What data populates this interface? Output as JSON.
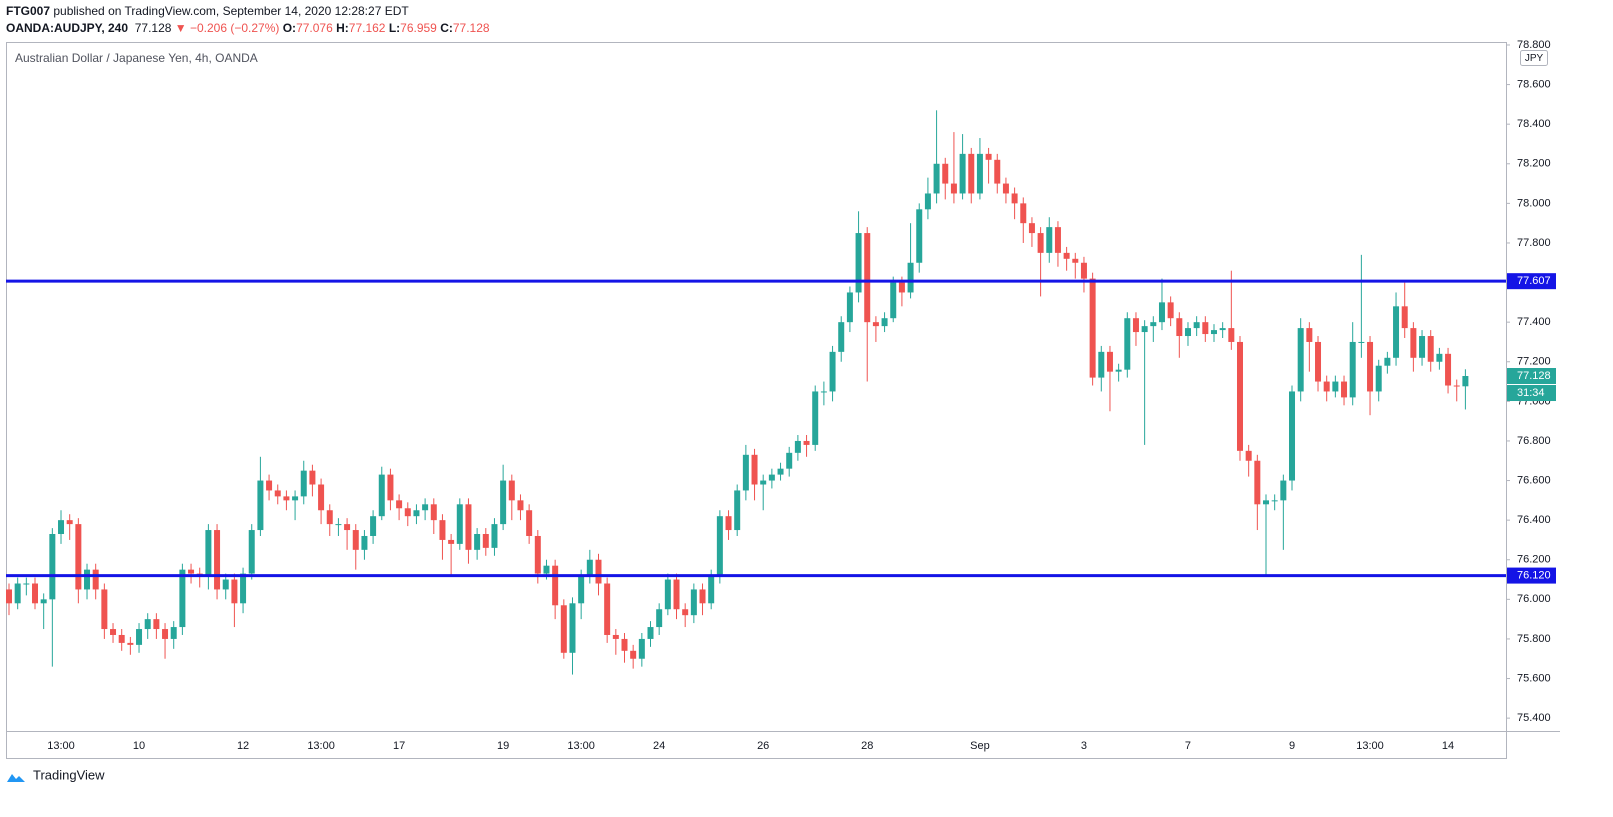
{
  "header": {
    "author": "FTG007",
    "published": "published on TradingView.com, September 14, 2020 12:28:27 EDT",
    "symbol": "OANDA:AUDJPY, 240",
    "change": "▼ −0.206 (−0.27%)",
    "o_label": "O:",
    "h_label": "H:",
    "l_label": "L:",
    "c_label": "C:"
  },
  "footer": {
    "logo": "TradingView"
  },
  "chart_data": {
    "type": "candlestick",
    "title": "Australian Dollar / Japanese Yen, 4h, OANDA",
    "currency": "JPY",
    "countdown": "31:34",
    "up_color": "#26a69a",
    "down_color": "#ef5350",
    "categories": [
      null,
      null,
      null,
      null,
      null,
      null,
      "13:00",
      null,
      null,
      null,
      null,
      null,
      null,
      null,
      null,
      "10",
      null,
      null,
      null,
      null,
      null,
      null,
      null,
      null,
      null,
      null,
      null,
      "12",
      null,
      null,
      null,
      null,
      null,
      null,
      null,
      null,
      "13:00",
      null,
      null,
      null,
      null,
      null,
      null,
      null,
      null,
      "17",
      null,
      null,
      null,
      null,
      null,
      null,
      null,
      null,
      null,
      null,
      null,
      "19",
      null,
      null,
      null,
      null,
      null,
      null,
      null,
      null,
      "13:00",
      null,
      null,
      null,
      null,
      null,
      null,
      null,
      null,
      "24",
      null,
      null,
      null,
      null,
      null,
      null,
      null,
      null,
      null,
      null,
      null,
      "26",
      null,
      null,
      null,
      null,
      null,
      null,
      null,
      null,
      null,
      null,
      null,
      "28",
      null,
      null,
      null,
      null,
      null,
      null,
      null,
      null,
      null,
      null,
      null,
      null,
      "Sep",
      null,
      null,
      null,
      null,
      null,
      null,
      null,
      null,
      null,
      null,
      null,
      "3",
      null,
      null,
      null,
      null,
      null,
      null,
      null,
      null,
      null,
      null,
      null,
      "7",
      null,
      null,
      null,
      null,
      null,
      null,
      null,
      null,
      null,
      null,
      null,
      "9",
      null,
      null,
      null,
      null,
      null,
      null,
      null,
      null,
      "13:00",
      null,
      null,
      null,
      null,
      null,
      null,
      null,
      null,
      "14",
      null,
      null
    ],
    "open": [
      76.05,
      75.98,
      76.08,
      76.08,
      75.98,
      76.0,
      76.33,
      76.4,
      76.38,
      76.05,
      76.15,
      76.05,
      75.85,
      75.82,
      75.78,
      75.77,
      75.85,
      75.9,
      75.85,
      75.8,
      75.86,
      76.15,
      76.13,
      76.12,
      76.35,
      76.05,
      76.1,
      75.98,
      76.13,
      76.35,
      76.6,
      76.55,
      76.52,
      76.5,
      76.52,
      76.65,
      76.58,
      76.45,
      76.38,
      76.38,
      76.35,
      76.25,
      76.32,
      76.42,
      76.63,
      76.5,
      76.46,
      76.42,
      76.45,
      76.48,
      76.4,
      76.3,
      76.28,
      76.48,
      76.25,
      76.33,
      76.26,
      76.38,
      76.6,
      76.5,
      76.45,
      76.32,
      76.13,
      76.17,
      75.97,
      75.73,
      75.98,
      76.12,
      76.2,
      76.08,
      75.82,
      75.8,
      75.74,
      75.7,
      75.8,
      75.86,
      75.95,
      76.1,
      75.95,
      75.92,
      76.05,
      75.98,
      76.12,
      76.42,
      76.35,
      76.55,
      76.73,
      76.58,
      76.6,
      76.63,
      76.66,
      76.74,
      76.8,
      76.78,
      77.05,
      77.05,
      77.25,
      77.4,
      77.55,
      77.85,
      77.4,
      77.38,
      77.42,
      77.6,
      77.55,
      77.7,
      77.97,
      78.05,
      78.2,
      78.1,
      78.05,
      78.25,
      78.05,
      78.25,
      78.22,
      78.1,
      78.05,
      78.0,
      77.9,
      77.85,
      77.75,
      77.88,
      77.75,
      77.72,
      77.7,
      77.62,
      77.12,
      77.25,
      77.15,
      77.16,
      77.42,
      77.35,
      77.38,
      77.4,
      77.5,
      77.42,
      77.33,
      77.37,
      77.4,
      77.34,
      77.36,
      77.37,
      77.3,
      76.75,
      76.7,
      76.48,
      76.5,
      76.5,
      76.6,
      77.05,
      77.37,
      77.3,
      77.1,
      77.05,
      77.1,
      77.02,
      77.3,
      77.3,
      77.05,
      77.18,
      77.22,
      77.48,
      77.37,
      77.22,
      77.33,
      77.2,
      77.24,
      77.08,
      77.076
    ],
    "high": [
      76.08,
      76.11,
      76.11,
      76.11,
      76.03,
      76.36,
      76.45,
      76.43,
      76.41,
      76.18,
      76.18,
      76.08,
      75.88,
      75.85,
      75.81,
      75.88,
      75.93,
      75.93,
      75.88,
      75.89,
      76.18,
      76.18,
      76.16,
      76.38,
      76.38,
      76.13,
      76.13,
      76.16,
      76.38,
      76.72,
      76.63,
      76.58,
      76.55,
      76.55,
      76.7,
      76.68,
      76.61,
      76.48,
      76.41,
      76.41,
      76.38,
      76.35,
      76.45,
      76.67,
      76.66,
      76.53,
      76.49,
      76.48,
      76.51,
      76.51,
      76.43,
      76.33,
      76.51,
      76.51,
      76.36,
      76.36,
      76.41,
      76.68,
      76.63,
      76.53,
      76.48,
      76.35,
      76.2,
      76.2,
      76.0,
      76.01,
      76.15,
      76.25,
      76.23,
      76.11,
      75.85,
      75.83,
      75.77,
      75.83,
      75.89,
      75.98,
      76.13,
      76.13,
      75.98,
      76.08,
      76.08,
      76.15,
      76.45,
      76.45,
      76.58,
      76.78,
      76.76,
      76.63,
      76.66,
      76.69,
      76.77,
      76.83,
      76.83,
      77.08,
      77.1,
      77.28,
      77.43,
      77.58,
      77.96,
      77.88,
      77.43,
      77.45,
      77.63,
      77.63,
      77.9,
      78.0,
      78.13,
      78.47,
      78.23,
      78.36,
      78.35,
      78.28,
      78.33,
      78.28,
      78.25,
      78.13,
      78.08,
      78.03,
      77.93,
      77.88,
      77.93,
      77.91,
      77.78,
      77.75,
      77.73,
      77.65,
      77.28,
      77.28,
      77.19,
      77.45,
      77.45,
      77.41,
      77.43,
      77.62,
      77.53,
      77.45,
      77.4,
      77.43,
      77.43,
      77.39,
      77.4,
      77.66,
      77.33,
      76.78,
      76.73,
      76.53,
      76.53,
      76.63,
      77.08,
      77.42,
      77.4,
      77.33,
      77.13,
      77.13,
      77.13,
      77.4,
      77.74,
      77.33,
      77.21,
      77.25,
      77.55,
      77.6,
      77.4,
      77.36,
      77.36,
      77.27,
      77.27,
      77.11,
      77.162
    ],
    "low": [
      75.92,
      75.95,
      76.02,
      75.95,
      75.85,
      75.66,
      76.28,
      76.3,
      75.98,
      76.0,
      76.0,
      75.8,
      75.78,
      75.74,
      75.72,
      75.73,
      75.8,
      75.8,
      75.7,
      75.75,
      75.82,
      76.08,
      76.06,
      76.05,
      76.0,
      76.0,
      75.86,
      75.93,
      76.1,
      76.32,
      76.5,
      76.48,
      76.45,
      76.4,
      76.48,
      76.52,
      76.38,
      76.32,
      76.32,
      76.25,
      76.15,
      76.2,
      76.28,
      76.4,
      76.45,
      76.4,
      76.37,
      76.38,
      76.4,
      76.33,
      76.2,
      76.12,
      76.25,
      76.18,
      76.2,
      76.22,
      76.22,
      76.35,
      76.4,
      76.4,
      76.28,
      76.08,
      76.1,
      75.9,
      75.7,
      75.62,
      75.9,
      76.08,
      76.02,
      75.78,
      75.72,
      75.68,
      75.65,
      75.66,
      75.76,
      75.82,
      75.92,
      75.9,
      75.86,
      75.88,
      75.92,
      75.95,
      76.08,
      76.3,
      76.32,
      76.5,
      76.5,
      76.45,
      76.56,
      76.6,
      76.62,
      76.7,
      76.72,
      76.75,
      76.98,
      77.0,
      77.2,
      77.35,
      77.5,
      77.1,
      77.3,
      77.35,
      77.4,
      77.48,
      77.52,
      77.65,
      77.92,
      78.0,
      78.02,
      78.0,
      78.02,
      78.0,
      78.02,
      78.1,
      78.05,
      78.0,
      77.92,
      77.8,
      77.78,
      77.53,
      77.7,
      77.68,
      77.66,
      77.62,
      77.55,
      77.08,
      77.05,
      76.95,
      77.1,
      77.12,
      77.28,
      76.78,
      77.3,
      77.36,
      77.38,
      77.22,
      77.28,
      77.33,
      77.3,
      77.3,
      77.32,
      77.26,
      76.7,
      76.62,
      76.35,
      76.12,
      76.45,
      76.25,
      76.55,
      77.0,
      77.15,
      77.05,
      77.0,
      77.02,
      76.98,
      76.98,
      77.22,
      76.93,
      77.0,
      77.14,
      77.18,
      77.32,
      77.15,
      77.18,
      77.15,
      77.16,
      77.04,
      77.0,
      76.959
    ],
    "close": [
      75.98,
      76.08,
      76.08,
      75.98,
      76.0,
      76.33,
      76.4,
      76.38,
      76.05,
      76.15,
      76.05,
      75.85,
      75.82,
      75.78,
      75.77,
      75.85,
      75.9,
      75.85,
      75.8,
      75.86,
      76.15,
      76.13,
      76.12,
      76.35,
      76.05,
      76.1,
      75.98,
      76.13,
      76.35,
      76.6,
      76.55,
      76.52,
      76.5,
      76.52,
      76.65,
      76.58,
      76.45,
      76.38,
      76.38,
      76.35,
      76.25,
      76.32,
      76.42,
      76.63,
      76.5,
      76.46,
      76.42,
      76.45,
      76.48,
      76.4,
      76.3,
      76.28,
      76.48,
      76.25,
      76.33,
      76.26,
      76.38,
      76.6,
      76.5,
      76.45,
      76.32,
      76.13,
      76.17,
      75.97,
      75.73,
      75.98,
      76.12,
      76.2,
      76.08,
      75.82,
      75.8,
      75.74,
      75.7,
      75.8,
      75.86,
      75.95,
      76.1,
      75.95,
      75.92,
      76.05,
      75.98,
      76.12,
      76.42,
      76.35,
      76.55,
      76.73,
      76.58,
      76.6,
      76.63,
      76.66,
      76.74,
      76.8,
      76.78,
      77.05,
      77.05,
      77.25,
      77.4,
      77.55,
      77.85,
      77.4,
      77.38,
      77.42,
      77.6,
      77.55,
      77.7,
      77.97,
      78.05,
      78.2,
      78.1,
      78.05,
      78.25,
      78.05,
      78.25,
      78.22,
      78.1,
      78.05,
      78.0,
      77.9,
      77.85,
      77.75,
      77.88,
      77.75,
      77.72,
      77.7,
      77.62,
      77.12,
      77.25,
      77.15,
      77.16,
      77.42,
      77.35,
      77.38,
      77.4,
      77.5,
      77.42,
      77.33,
      77.37,
      77.4,
      77.34,
      77.36,
      77.37,
      77.3,
      76.75,
      76.7,
      76.48,
      76.5,
      76.5,
      76.6,
      77.05,
      77.37,
      77.3,
      77.1,
      77.05,
      77.1,
      77.02,
      77.3,
      77.3,
      77.05,
      77.18,
      77.22,
      77.48,
      77.37,
      77.22,
      77.33,
      77.2,
      77.24,
      77.08,
      77.076,
      77.128
    ],
    "levels": [
      {
        "value": 77.607,
        "color": "#1414e6"
      },
      {
        "value": 76.12,
        "label": "76.120",
        "color": "#1414e6"
      }
    ],
    "ylim": [
      75.335,
      78.81
    ],
    "yticks": [
      {
        "value": 75.4,
        "label": "75.400"
      },
      {
        "value": 75.6,
        "label": "75.600"
      },
      {
        "value": 75.8,
        "label": "75.800"
      },
      {
        "value": 76,
        "label": "76.000"
      },
      {
        "value": 76.2,
        "label": "76.200"
      },
      {
        "value": 76.4,
        "label": "76.400"
      },
      {
        "value": 76.6,
        "label": "76.600"
      },
      {
        "value": 76.8,
        "label": "76.800"
      },
      {
        "value": 77,
        "label": "77.000"
      },
      {
        "value": 77.2,
        "label": "77.200"
      },
      {
        "value": 77.4,
        "label": "77.400"
      },
      {
        "value": 77.6,
        "label": "77.600"
      },
      {
        "value": 77.8,
        "label": "77.800"
      },
      {
        "value": 78,
        "label": "78.000"
      },
      {
        "value": 78.2,
        "label": "78.200"
      },
      {
        "value": 78.4,
        "label": "78.400"
      },
      {
        "value": 78.6,
        "label": "78.600"
      },
      {
        "value": 78.8,
        "label": "78.800"
      }
    ],
    "grid": false
  }
}
